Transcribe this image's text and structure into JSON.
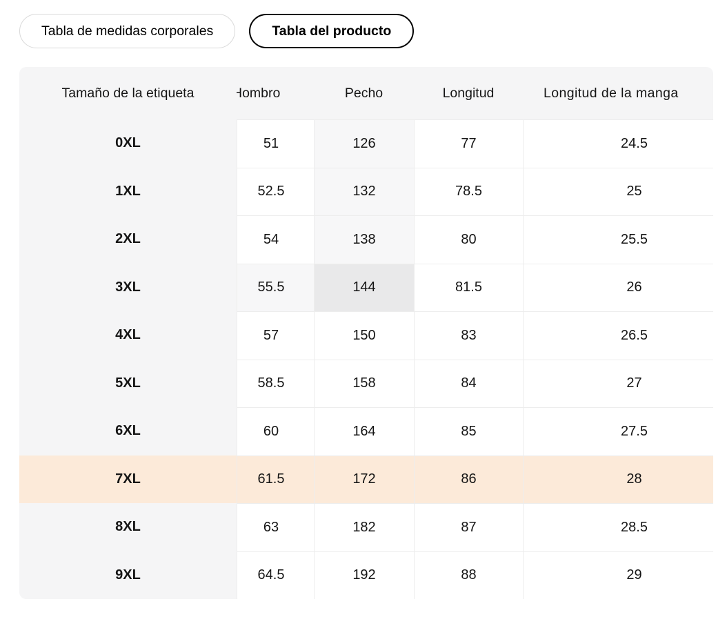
{
  "tabs": [
    {
      "label": "Tabla de medidas corporales",
      "selected": false
    },
    {
      "label": "Tabla del producto",
      "selected": true
    }
  ],
  "table": {
    "columns": [
      "Tamaño de la etiqueta",
      "Hombro",
      "Pecho",
      "Longitud",
      "Longitud de la manga"
    ],
    "rows": [
      {
        "size": "0XL",
        "values": [
          "51",
          "126",
          "77",
          "24.5"
        ]
      },
      {
        "size": "1XL",
        "values": [
          "52.5",
          "132",
          "78.5",
          "25"
        ]
      },
      {
        "size": "2XL",
        "values": [
          "54",
          "138",
          "80",
          "25.5"
        ]
      },
      {
        "size": "3XL",
        "values": [
          "55.5",
          "144",
          "81.5",
          "26"
        ]
      },
      {
        "size": "4XL",
        "values": [
          "57",
          "150",
          "83",
          "26.5"
        ]
      },
      {
        "size": "5XL",
        "values": [
          "58.5",
          "158",
          "84",
          "27"
        ]
      },
      {
        "size": "6XL",
        "values": [
          "60",
          "164",
          "85",
          "27.5"
        ]
      },
      {
        "size": "7XL",
        "values": [
          "61.5",
          "172",
          "86",
          "28"
        ]
      },
      {
        "size": "8XL",
        "values": [
          "63",
          "182",
          "87",
          "28.5"
        ]
      },
      {
        "size": "9XL",
        "values": [
          "64.5",
          "192",
          "88",
          "29"
        ]
      }
    ],
    "selected_cell": {
      "row": "3XL",
      "column": "Pecho"
    },
    "highlighted_row": "7XL"
  },
  "colors": {
    "header_bg": "#f5f5f6",
    "column_tint": "#f7f7f8",
    "selected_cell_bg": "#e9e9ea",
    "highlight_row_bg": "#fcead9",
    "divider": "#ededed",
    "tab_border_active": "#000000",
    "tab_border_inactive": "#d9d9d9"
  }
}
